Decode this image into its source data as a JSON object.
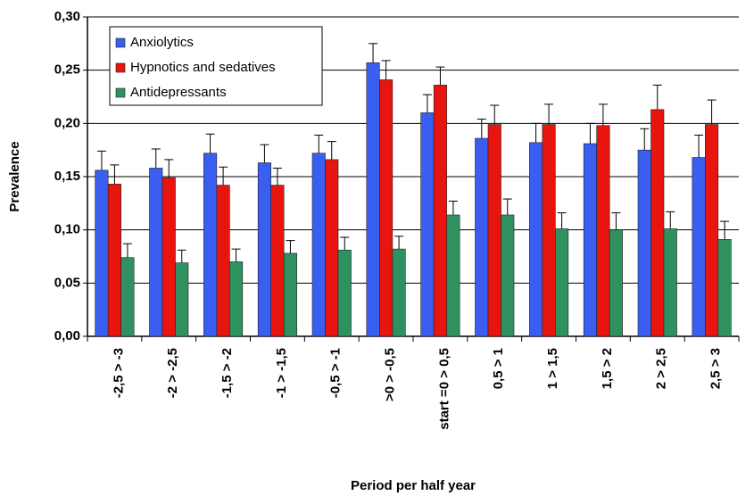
{
  "chart_data": {
    "type": "bar",
    "x_label": "Period per half year",
    "y_label": "Prevalence",
    "categories": [
      "-2,5 > -3",
      "-2 > -2,5",
      "-1,5 > -2",
      "-1 > -1,5",
      "-0,5 > -1",
      ">0 > -0,5",
      "start =0 > 0,5",
      "0,5 > 1",
      "1 > 1,5",
      "1,5 > 2",
      "2 > 2,5",
      "2,5 > 3"
    ],
    "series": [
      {
        "name": "Anxiolytics",
        "color": "#3a5ef0",
        "values": [
          0.156,
          0.158,
          0.172,
          0.163,
          0.172,
          0.257,
          0.21,
          0.186,
          0.182,
          0.181,
          0.175,
          0.168
        ],
        "errors": [
          0.018,
          0.018,
          0.018,
          0.017,
          0.017,
          0.018,
          0.017,
          0.018,
          0.018,
          0.019,
          0.02,
          0.021
        ]
      },
      {
        "name": "Hypnotics and sedatives",
        "color": "#e8150f",
        "values": [
          0.143,
          0.149,
          0.142,
          0.142,
          0.166,
          0.241,
          0.236,
          0.199,
          0.199,
          0.198,
          0.213,
          0.199
        ],
        "errors": [
          0.018,
          0.017,
          0.017,
          0.016,
          0.017,
          0.018,
          0.017,
          0.018,
          0.019,
          0.02,
          0.023,
          0.023
        ]
      },
      {
        "name": "Antidepressants",
        "color": "#2f9160",
        "values": [
          0.074,
          0.069,
          0.07,
          0.078,
          0.081,
          0.082,
          0.114,
          0.114,
          0.101,
          0.1,
          0.101,
          0.091
        ],
        "errors": [
          0.013,
          0.012,
          0.012,
          0.012,
          0.012,
          0.012,
          0.013,
          0.015,
          0.015,
          0.016,
          0.016,
          0.017
        ]
      }
    ],
    "ylim": [
      0,
      0.3
    ],
    "yticks": [
      {
        "value": 0,
        "label": "0,00"
      },
      {
        "value": 0.05,
        "label": "0,05"
      },
      {
        "value": 0.1,
        "label": "0,10"
      },
      {
        "value": 0.15,
        "label": "0,15"
      },
      {
        "value": 0.2,
        "label": "0,20"
      },
      {
        "value": 0.25,
        "label": "0,25"
      },
      {
        "value": 0.3,
        "label": "0,30"
      }
    ],
    "grid": true,
    "legend": "top-left"
  }
}
